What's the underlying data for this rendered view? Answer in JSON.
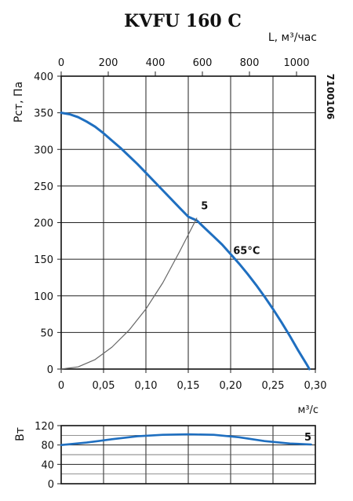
{
  "chart_data": [
    {
      "type": "line",
      "title": "KVFU 160 C",
      "side_label": "7100106",
      "ylabel": "Рст, Па",
      "xlabel": "м³/с",
      "top_axis_label": "L, м³/час",
      "xlim": [
        0,
        0.3
      ],
      "ylim": [
        0,
        400
      ],
      "top_xlim": [
        0,
        1080
      ],
      "x_ticks": [
        0,
        0.05,
        0.1,
        0.15,
        0.2,
        0.25,
        0.3
      ],
      "x_tick_labels": [
        "0",
        "0,05",
        "0,10",
        "0,15",
        "0,20",
        "0,25",
        "0,30"
      ],
      "y_ticks": [
        0,
        50,
        100,
        150,
        200,
        250,
        300,
        350,
        400
      ],
      "y_tick_labels": [
        "0",
        "50",
        "100",
        "150",
        "200",
        "250",
        "300",
        "350",
        "400"
      ],
      "top_ticks": [
        0,
        200,
        400,
        600,
        800,
        1000
      ],
      "top_tick_labels": [
        "0",
        "200",
        "400",
        "600",
        "800",
        "1000"
      ],
      "grid": true,
      "series": [
        {
          "name": "65°C",
          "color": "#1f6fc0",
          "x": [
            0,
            0.01,
            0.02,
            0.03,
            0.04,
            0.05,
            0.06,
            0.07,
            0.08,
            0.09,
            0.1,
            0.11,
            0.12,
            0.13,
            0.14,
            0.15,
            0.16,
            0.17,
            0.18,
            0.19,
            0.2,
            0.21,
            0.22,
            0.23,
            0.24,
            0.25,
            0.26,
            0.27,
            0.28,
            0.29,
            0.293
          ],
          "y": [
            350,
            348,
            344,
            338,
            331,
            322,
            312,
            302,
            291,
            280,
            268,
            256,
            244,
            232,
            220,
            208,
            203,
            192,
            181,
            170,
            157,
            144,
            130,
            115,
            99,
            82,
            64,
            45,
            25,
            6,
            0
          ]
        },
        {
          "name": "5",
          "color": "#666666",
          "x": [
            0,
            0.02,
            0.04,
            0.06,
            0.08,
            0.1,
            0.12,
            0.14,
            0.16
          ],
          "y": [
            0,
            3,
            13,
            30,
            53,
            82,
            118,
            161,
            206
          ]
        }
      ],
      "annotations": [
        {
          "text": "5",
          "x": 0.165,
          "y": 218
        },
        {
          "text": "65°C",
          "x": 0.203,
          "y": 157
        }
      ]
    },
    {
      "type": "line",
      "ylabel": "Вт",
      "xlim": [
        0,
        0.3
      ],
      "ylim": [
        0,
        120
      ],
      "y_ticks": [
        0,
        40,
        80,
        120
      ],
      "y_tick_labels": [
        "0",
        "40",
        "80",
        "120"
      ],
      "grid": true,
      "series": [
        {
          "name": "5",
          "color": "#1f6fc0",
          "x": [
            0,
            0.03,
            0.06,
            0.09,
            0.12,
            0.15,
            0.18,
            0.21,
            0.24,
            0.27,
            0.295
          ],
          "y": [
            80,
            85,
            92,
            98,
            101,
            102,
            101,
            96,
            88,
            83,
            81
          ]
        }
      ],
      "annotations": [
        {
          "text": "5",
          "x": 0.287,
          "y": 89
        }
      ]
    }
  ]
}
